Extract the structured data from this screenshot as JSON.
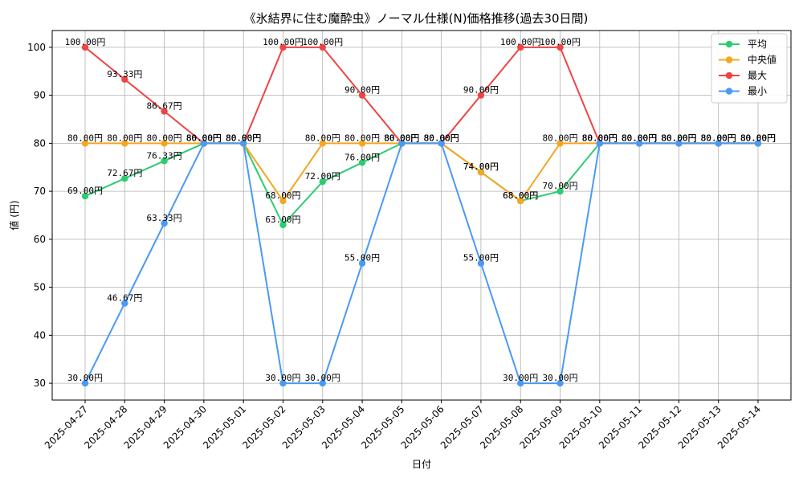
{
  "chart_data": {
    "type": "line",
    "title": "《氷結界に住む魔酔虫》ノーマル仕様(N)価格推移(過去30日間)",
    "xlabel": "日付",
    "ylabel": "値 (円)",
    "ylim": [
      26.5,
      103.5
    ],
    "yticks": [
      30,
      40,
      50,
      60,
      70,
      80,
      90,
      100
    ],
    "grid": true,
    "legend_position": "top-right",
    "value_suffix": "円",
    "categories": [
      "2025-04-27",
      "2025-04-28",
      "2025-04-29",
      "2025-04-30",
      "2025-05-01",
      "2025-05-02",
      "2025-05-03",
      "2025-05-04",
      "2025-05-05",
      "2025-05-06",
      "2025-05-07",
      "2025-05-08",
      "2025-05-09",
      "2025-05-10",
      "2025-05-11",
      "2025-05-12",
      "2025-05-13",
      "2025-05-14"
    ],
    "series": [
      {
        "name": "平均",
        "color": "#2ecc71",
        "values": [
          69.0,
          72.67,
          76.33,
          80.0,
          80.0,
          63.0,
          72.0,
          76.0,
          80.0,
          80.0,
          74.0,
          68.0,
          70.0,
          80.0,
          80.0,
          80.0,
          80.0,
          80.0
        ]
      },
      {
        "name": "中央値",
        "color": "#f5a623",
        "values": [
          80.0,
          80.0,
          80.0,
          80.0,
          80.0,
          68.0,
          80.0,
          80.0,
          80.0,
          80.0,
          74.0,
          68.0,
          80.0,
          80.0,
          80.0,
          80.0,
          80.0,
          80.0
        ]
      },
      {
        "name": "最大",
        "color": "#ef4444",
        "values": [
          100.0,
          93.33,
          86.67,
          80.0,
          80.0,
          100.0,
          100.0,
          90.0,
          80.0,
          80.0,
          90.0,
          100.0,
          100.0,
          80.0,
          80.0,
          80.0,
          80.0,
          80.0
        ]
      },
      {
        "name": "最小",
        "color": "#4a9af5",
        "values": [
          30.0,
          46.67,
          63.33,
          80.0,
          80.0,
          30.0,
          30.0,
          55.0,
          80.0,
          80.0,
          55.0,
          30.0,
          30.0,
          80.0,
          80.0,
          80.0,
          80.0,
          80.0
        ]
      }
    ]
  }
}
